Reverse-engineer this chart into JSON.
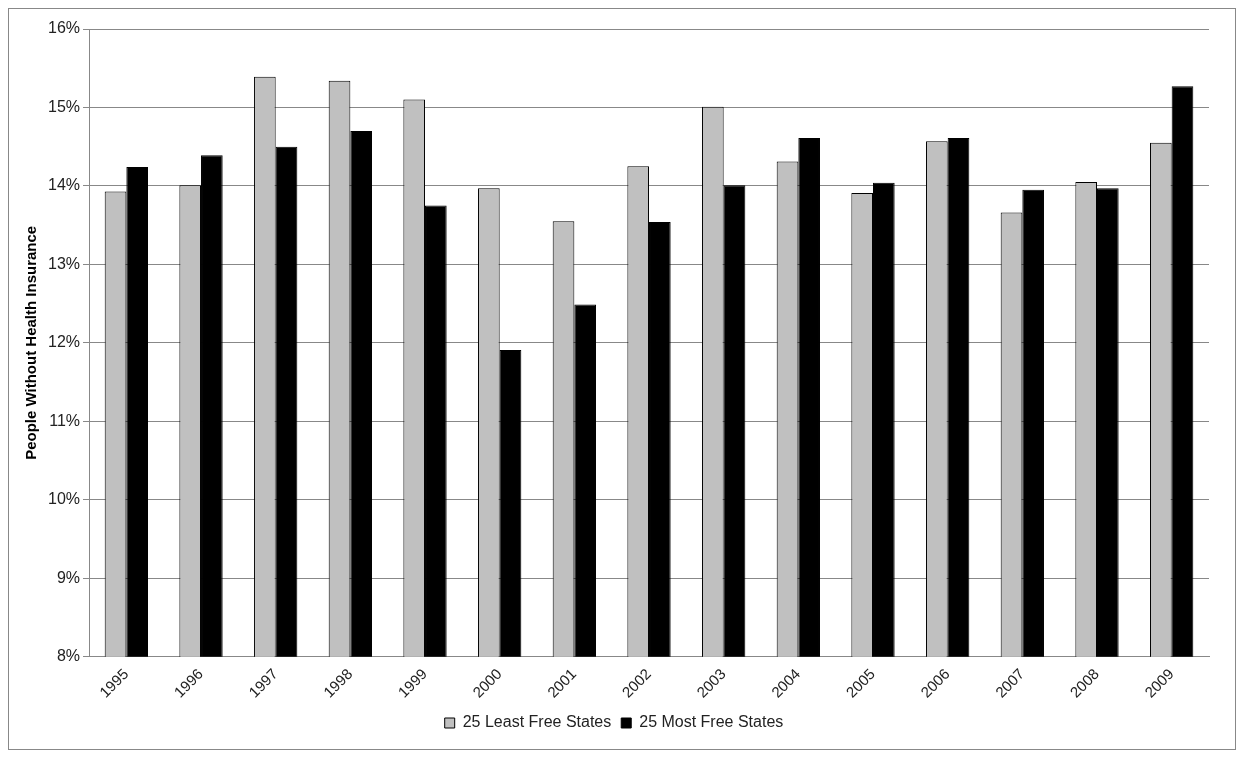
{
  "chart_data": {
    "type": "bar",
    "ylabel": "People Without Health Insurance",
    "categories": [
      "1995",
      "1996",
      "1997",
      "1998",
      "1999",
      "2000",
      "2001",
      "2002",
      "2003",
      "2004",
      "2005",
      "2006",
      "2007",
      "2008",
      "2009"
    ],
    "series": [
      {
        "name": "25 Least Free States",
        "color": "#c0c0c0",
        "values": [
          13.93,
          14.01,
          15.39,
          15.34,
          15.1,
          13.97,
          13.55,
          14.25,
          15.01,
          14.31,
          13.91,
          14.57,
          13.66,
          14.05,
          14.55
        ]
      },
      {
        "name": "25 Most Free States",
        "color": "#000000",
        "values": [
          14.24,
          14.39,
          14.5,
          14.7,
          13.75,
          11.91,
          12.49,
          13.54,
          14.01,
          14.61,
          14.04,
          14.61,
          13.95,
          13.97,
          15.27
        ]
      }
    ],
    "ylim": [
      8,
      16
    ],
    "yticks": [
      {
        "value": 8,
        "label": "8%"
      },
      {
        "value": 9,
        "label": "9%"
      },
      {
        "value": 10,
        "label": "10%"
      },
      {
        "value": 11,
        "label": "11%"
      },
      {
        "value": 12,
        "label": "12%"
      },
      {
        "value": 13,
        "label": "13%"
      },
      {
        "value": 14,
        "label": "14%"
      },
      {
        "value": 15,
        "label": "15%"
      },
      {
        "value": 16,
        "label": "16%"
      }
    ],
    "grid": "y",
    "legend": "bottom"
  }
}
